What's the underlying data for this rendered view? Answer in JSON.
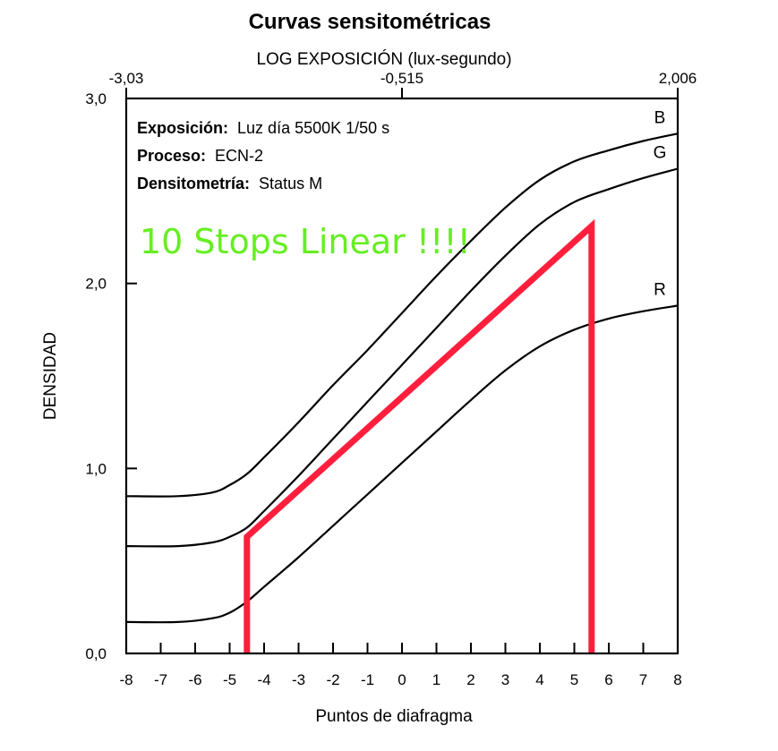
{
  "chart_data": {
    "type": "line",
    "title": "Curvas sensitométricas",
    "top_axis": {
      "label": "LOG EXPOSICIÓN (lux-segundo)",
      "tick_labels": [
        "-3,03",
        "-0,515",
        "2,006"
      ],
      "tick_positions": [
        -8,
        0,
        8
      ]
    },
    "xlabel": "Puntos de diafragma",
    "ylabel": "DENSIDAD",
    "xlim": [
      -8,
      8
    ],
    "ylim": [
      0,
      3
    ],
    "x_ticks": [
      -8,
      -7,
      -6,
      -5,
      -4,
      -3,
      -2,
      -1,
      0,
      1,
      2,
      3,
      4,
      5,
      6,
      7,
      8
    ],
    "x_tick_labels": [
      "-8",
      "-7",
      "-6",
      "-5",
      "-4",
      "-3",
      "-2",
      "-1",
      "0",
      "1",
      "2",
      "3",
      "4",
      "5",
      "6",
      "7",
      "8"
    ],
    "y_ticks": [
      0,
      1,
      2,
      3
    ],
    "y_tick_labels": [
      "0,0",
      "1,0",
      "2,0",
      "3,0"
    ],
    "info": [
      {
        "label": "Exposición:",
        "value": "Luz día 5500K 1/50 s"
      },
      {
        "label": "Proceso:",
        "value": "ECN-2"
      },
      {
        "label": "Densitometría:",
        "value": "Status M"
      }
    ],
    "series": [
      {
        "name": "B",
        "x": [
          -8,
          -6.5,
          -5.5,
          -5,
          -4.5,
          -4,
          -3,
          -2,
          -1,
          0,
          1,
          2,
          3,
          4,
          5,
          6,
          7,
          8
        ],
        "y": [
          0.85,
          0.85,
          0.87,
          0.91,
          0.97,
          1.06,
          1.25,
          1.45,
          1.64,
          1.84,
          2.04,
          2.23,
          2.41,
          2.56,
          2.66,
          2.72,
          2.77,
          2.81
        ]
      },
      {
        "name": "G",
        "x": [
          -8,
          -6.5,
          -5.5,
          -5,
          -4.5,
          -4,
          -3,
          -2,
          -1,
          0,
          1,
          2,
          3,
          4,
          5,
          6,
          7,
          8
        ],
        "y": [
          0.58,
          0.58,
          0.6,
          0.63,
          0.68,
          0.77,
          0.96,
          1.16,
          1.36,
          1.56,
          1.76,
          1.96,
          2.15,
          2.32,
          2.44,
          2.51,
          2.57,
          2.62
        ]
      },
      {
        "name": "R",
        "x": [
          -8,
          -6.5,
          -5.5,
          -5,
          -4.5,
          -4,
          -3,
          -2,
          -1,
          0,
          1,
          2,
          3,
          4,
          5,
          6,
          7,
          8
        ],
        "y": [
          0.17,
          0.17,
          0.19,
          0.22,
          0.28,
          0.36,
          0.52,
          0.69,
          0.86,
          1.03,
          1.2,
          1.37,
          1.53,
          1.66,
          1.75,
          1.81,
          1.85,
          1.88
        ]
      }
    ],
    "annotation": {
      "text": "10 Stops Linear !!!!",
      "color": "#66ee22",
      "marker_color": "#ff1f3d",
      "marker": {
        "x_start": -4.5,
        "x_end": 5.5,
        "y_start": 0.63,
        "y_end": 2.31
      }
    }
  }
}
